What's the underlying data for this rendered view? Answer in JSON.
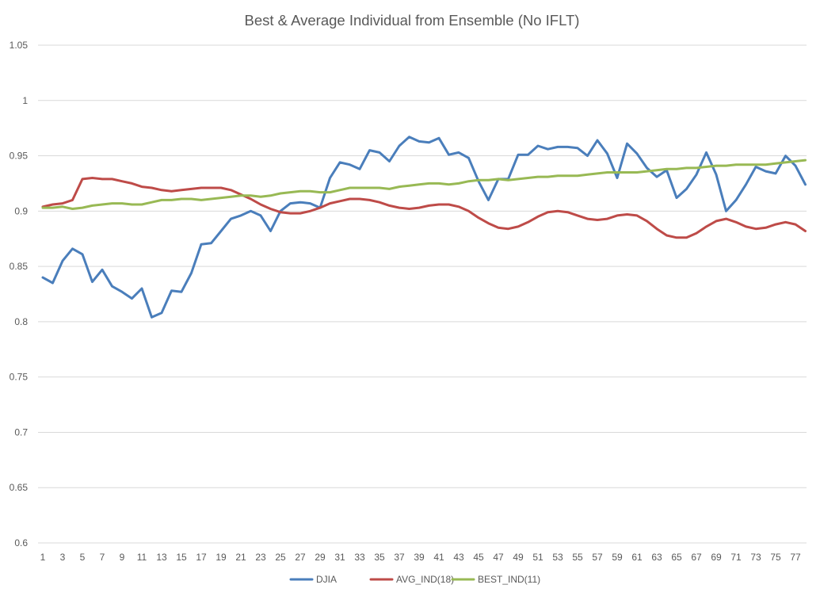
{
  "chart_data": {
    "type": "line",
    "title": "Best & Average Individual from Ensemble (No IFLT)",
    "xlabel": "",
    "ylabel": "",
    "ylim": [
      0.6,
      1.05
    ],
    "yticks": [
      "0.6",
      "0.65",
      "0.7",
      "0.75",
      "0.8",
      "0.85",
      "0.9",
      "0.95",
      "1",
      "1.05"
    ],
    "x": [
      1,
      2,
      3,
      4,
      5,
      6,
      7,
      8,
      9,
      10,
      11,
      12,
      13,
      14,
      15,
      16,
      17,
      18,
      19,
      20,
      21,
      22,
      23,
      24,
      25,
      26,
      27,
      28,
      29,
      30,
      31,
      32,
      33,
      34,
      35,
      36,
      37,
      38,
      39,
      40,
      41,
      42,
      43,
      44,
      45,
      46,
      47,
      48,
      49,
      50,
      51,
      52,
      53,
      54,
      55,
      56,
      57,
      58,
      59,
      60,
      61,
      62,
      63,
      64,
      65,
      66,
      67,
      68,
      69,
      70,
      71,
      72,
      73,
      74,
      75,
      76,
      77,
      78
    ],
    "xtick_labels": [
      "1",
      "3",
      "5",
      "7",
      "9",
      "11",
      "13",
      "15",
      "17",
      "19",
      "21",
      "23",
      "25",
      "27",
      "29",
      "31",
      "33",
      "35",
      "37",
      "39",
      "41",
      "43",
      "45",
      "47",
      "49",
      "51",
      "53",
      "55",
      "57",
      "59",
      "61",
      "63",
      "65",
      "67",
      "69",
      "71",
      "73",
      "75",
      "77"
    ],
    "grid": "horizontal",
    "legend_position": "bottom",
    "series": [
      {
        "name": "DJIA",
        "color": "#4a7ebb",
        "values": [
          0.84,
          0.835,
          0.855,
          0.866,
          0.861,
          0.836,
          0.847,
          0.832,
          0.827,
          0.821,
          0.83,
          0.804,
          0.808,
          0.828,
          0.827,
          0.844,
          0.87,
          0.871,
          0.882,
          0.893,
          0.896,
          0.9,
          0.896,
          0.882,
          0.9,
          0.907,
          0.908,
          0.907,
          0.903,
          0.93,
          0.944,
          0.942,
          0.938,
          0.955,
          0.953,
          0.945,
          0.959,
          0.967,
          0.963,
          0.962,
          0.966,
          0.951,
          0.953,
          0.948,
          0.927,
          0.91,
          0.929,
          0.929,
          0.951,
          0.951,
          0.959,
          0.956,
          0.958,
          0.958,
          0.957,
          0.95,
          0.964,
          0.952,
          0.93,
          0.961,
          0.952,
          0.939,
          0.931,
          0.937,
          0.912,
          0.92,
          0.933,
          0.953,
          0.933,
          0.9,
          0.91,
          0.924,
          0.94,
          0.936,
          0.934,
          0.95,
          0.941,
          0.924
        ]
      },
      {
        "name": "AVG_IND(18)",
        "color": "#be4b48",
        "values": [
          0.904,
          0.906,
          0.907,
          0.91,
          0.929,
          0.93,
          0.929,
          0.929,
          0.927,
          0.925,
          0.922,
          0.921,
          0.919,
          0.918,
          0.919,
          0.92,
          0.921,
          0.921,
          0.921,
          0.919,
          0.915,
          0.911,
          0.906,
          0.902,
          0.899,
          0.898,
          0.898,
          0.9,
          0.903,
          0.907,
          0.909,
          0.911,
          0.911,
          0.91,
          0.908,
          0.905,
          0.903,
          0.902,
          0.903,
          0.905,
          0.906,
          0.906,
          0.904,
          0.9,
          0.894,
          0.889,
          0.885,
          0.884,
          0.886,
          0.89,
          0.895,
          0.899,
          0.9,
          0.899,
          0.896,
          0.893,
          0.892,
          0.893,
          0.896,
          0.897,
          0.896,
          0.891,
          0.884,
          0.878,
          0.876,
          0.876,
          0.88,
          0.886,
          0.891,
          0.893,
          0.89,
          0.886,
          0.884,
          0.885,
          0.888,
          0.89,
          0.888,
          0.882
        ]
      },
      {
        "name": "BEST_IND(11)",
        "color": "#98b954",
        "values": [
          0.903,
          0.903,
          0.904,
          0.902,
          0.903,
          0.905,
          0.906,
          0.907,
          0.907,
          0.906,
          0.906,
          0.908,
          0.91,
          0.91,
          0.911,
          0.911,
          0.91,
          0.911,
          0.912,
          0.913,
          0.914,
          0.914,
          0.913,
          0.914,
          0.916,
          0.917,
          0.918,
          0.918,
          0.917,
          0.917,
          0.919,
          0.921,
          0.921,
          0.921,
          0.921,
          0.92,
          0.922,
          0.923,
          0.924,
          0.925,
          0.925,
          0.924,
          0.925,
          0.927,
          0.928,
          0.928,
          0.929,
          0.928,
          0.929,
          0.93,
          0.931,
          0.931,
          0.932,
          0.932,
          0.932,
          0.933,
          0.934,
          0.935,
          0.935,
          0.935,
          0.935,
          0.936,
          0.937,
          0.938,
          0.938,
          0.939,
          0.939,
          0.94,
          0.941,
          0.941,
          0.942,
          0.942,
          0.942,
          0.942,
          0.943,
          0.944,
          0.945,
          0.946
        ]
      }
    ]
  }
}
